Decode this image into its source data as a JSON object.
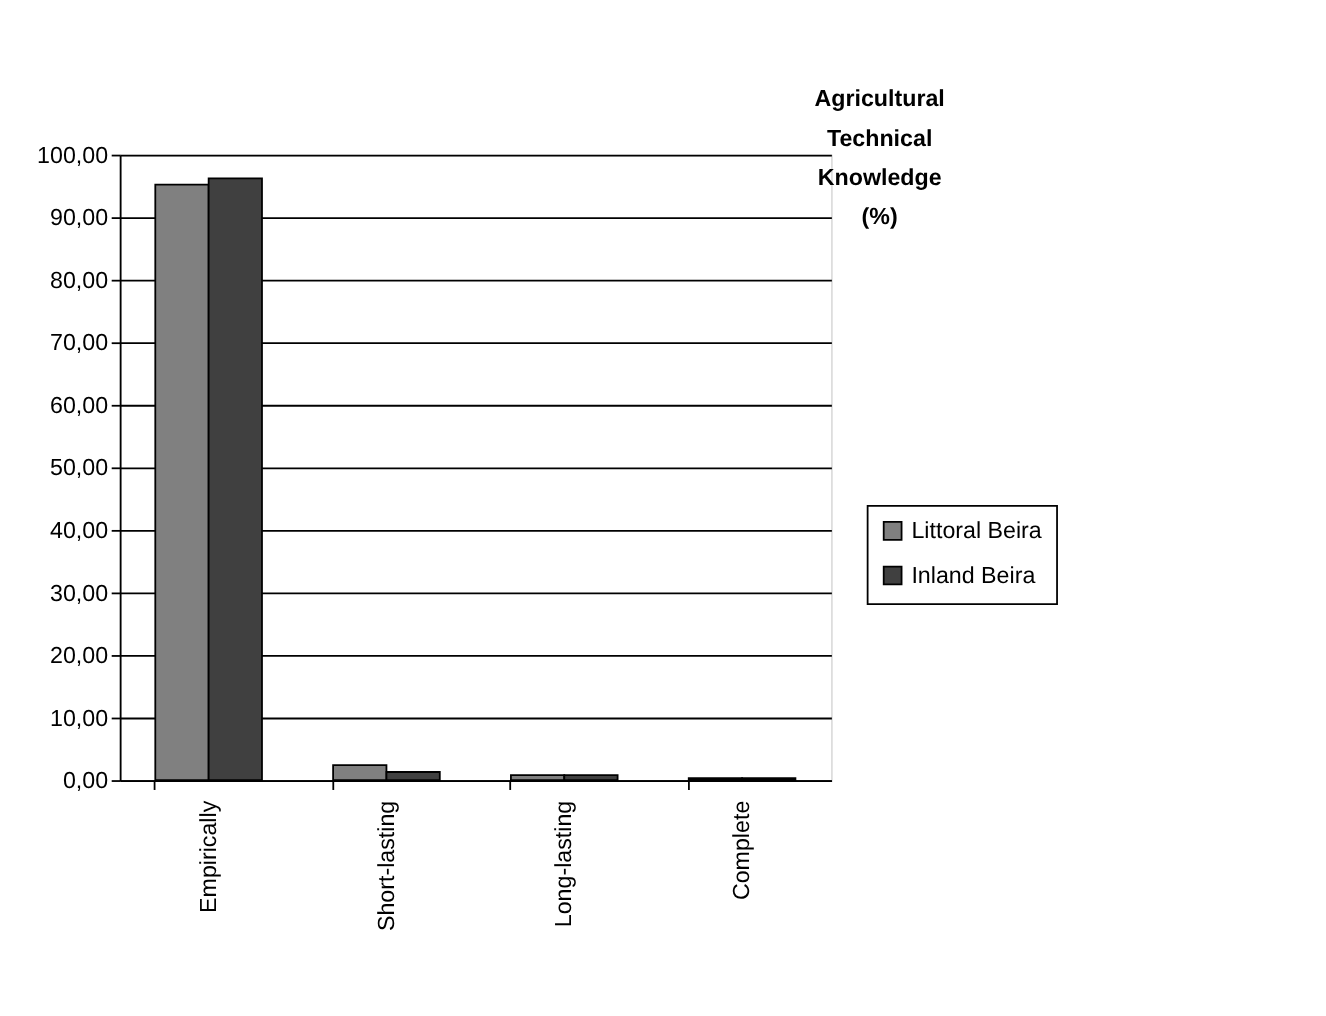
{
  "chart_data": {
    "type": "bar",
    "title": "Agricultural Technical Knowledge (%)",
    "categories": [
      "Empirically",
      "Short-lasting",
      "Long-lasting",
      "Complete"
    ],
    "series": [
      {
        "name": "Littoral Beira",
        "color": "#808080",
        "values": [
          95.2,
          2.4,
          0.8,
          0.3
        ]
      },
      {
        "name": "Inland Beira",
        "color": "#404040",
        "values": [
          96.2,
          1.3,
          0.8,
          0.3
        ]
      }
    ],
    "ylim": [
      0,
      100
    ],
    "yticks": [
      {
        "value": 0,
        "label": "0,00"
      },
      {
        "value": 10,
        "label": "10,00"
      },
      {
        "value": 20,
        "label": "20,00"
      },
      {
        "value": 30,
        "label": "30,00"
      },
      {
        "value": 40,
        "label": "40,00"
      },
      {
        "value": 50,
        "label": "50,00"
      },
      {
        "value": 60,
        "label": "60,00"
      },
      {
        "value": 70,
        "label": "70,00"
      },
      {
        "value": 80,
        "label": "80,00"
      },
      {
        "value": 90,
        "label": "90,00"
      },
      {
        "value": 100,
        "label": "100,00"
      }
    ],
    "grid": "y",
    "legend": "right"
  }
}
